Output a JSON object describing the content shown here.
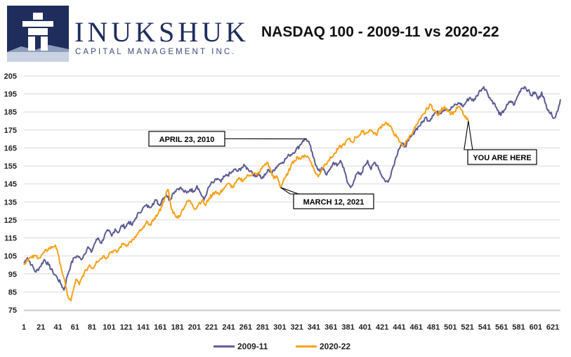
{
  "logo": {
    "name": "INUKSHUK",
    "subtitle": "CAPITAL MANAGEMENT INC."
  },
  "chart_data": {
    "type": "line",
    "title": "NASDAQ 100 - 2009-11 vs 2020-22",
    "xlabel": "",
    "ylabel": "",
    "xlim": [
      1,
      630
    ],
    "ylim": [
      75,
      205
    ],
    "x_ticks": [
      1,
      21,
      41,
      61,
      81,
      101,
      121,
      141,
      161,
      181,
      201,
      221,
      241,
      261,
      281,
      301,
      321,
      341,
      361,
      381,
      401,
      421,
      441,
      461,
      481,
      501,
      521,
      541,
      561,
      581,
      601,
      621
    ],
    "y_ticks": [
      75,
      85,
      95,
      105,
      115,
      125,
      135,
      145,
      155,
      165,
      175,
      185,
      195,
      205
    ],
    "grid": true,
    "legend_position": "bottom-center",
    "series": [
      {
        "name": "2009-11",
        "color": "#5b5b94",
        "points": [
          [
            1,
            101
          ],
          [
            5,
            104
          ],
          [
            10,
            100
          ],
          [
            15,
            96
          ],
          [
            20,
            99
          ],
          [
            25,
            103
          ],
          [
            30,
            100
          ],
          [
            35,
            96
          ],
          [
            40,
            93
          ],
          [
            45,
            89
          ],
          [
            48,
            86
          ],
          [
            52,
            94
          ],
          [
            56,
            100
          ],
          [
            60,
            104
          ],
          [
            64,
            105
          ],
          [
            68,
            103
          ],
          [
            72,
            106
          ],
          [
            76,
            110
          ],
          [
            80,
            107
          ],
          [
            84,
            112
          ],
          [
            88,
            115
          ],
          [
            92,
            112
          ],
          [
            96,
            117
          ],
          [
            100,
            119
          ],
          [
            104,
            116
          ],
          [
            108,
            120
          ],
          [
            112,
            118
          ],
          [
            116,
            122
          ],
          [
            120,
            121
          ],
          [
            124,
            124
          ],
          [
            128,
            122
          ],
          [
            132,
            126
          ],
          [
            136,
            129
          ],
          [
            140,
            131
          ],
          [
            144,
            133
          ],
          [
            148,
            132
          ],
          [
            152,
            134
          ],
          [
            156,
            136
          ],
          [
            160,
            133
          ],
          [
            164,
            137
          ],
          [
            168,
            139
          ],
          [
            172,
            136
          ],
          [
            176,
            140
          ],
          [
            180,
            142
          ],
          [
            184,
            143
          ],
          [
            188,
            141
          ],
          [
            192,
            140
          ],
          [
            196,
            142
          ],
          [
            200,
            141
          ],
          [
            204,
            144
          ],
          [
            208,
            140
          ],
          [
            212,
            136
          ],
          [
            216,
            141
          ],
          [
            220,
            145
          ],
          [
            224,
            146
          ],
          [
            228,
            148
          ],
          [
            232,
            146
          ],
          [
            236,
            149
          ],
          [
            240,
            150
          ],
          [
            244,
            151
          ],
          [
            248,
            153
          ],
          [
            252,
            152
          ],
          [
            256,
            154
          ],
          [
            260,
            155
          ],
          [
            264,
            153
          ],
          [
            268,
            152
          ],
          [
            272,
            149
          ],
          [
            276,
            151
          ],
          [
            280,
            148
          ],
          [
            284,
            150
          ],
          [
            288,
            153
          ],
          [
            292,
            151
          ],
          [
            296,
            154
          ],
          [
            300,
            156
          ],
          [
            304,
            157
          ],
          [
            308,
            159
          ],
          [
            312,
            161
          ],
          [
            316,
            162
          ],
          [
            320,
            164
          ],
          [
            324,
            166
          ],
          [
            328,
            169
          ],
          [
            332,
            170
          ],
          [
            336,
            167
          ],
          [
            340,
            160
          ],
          [
            344,
            155
          ],
          [
            348,
            152
          ],
          [
            352,
            154
          ],
          [
            356,
            150
          ],
          [
            360,
            153
          ],
          [
            364,
            157
          ],
          [
            368,
            155
          ],
          [
            372,
            158
          ],
          [
            376,
            154
          ],
          [
            380,
            146
          ],
          [
            384,
            143
          ],
          [
            388,
            147
          ],
          [
            392,
            151
          ],
          [
            396,
            150
          ],
          [
            400,
            155
          ],
          [
            404,
            158
          ],
          [
            408,
            153
          ],
          [
            412,
            157
          ],
          [
            416,
            155
          ],
          [
            420,
            150
          ],
          [
            424,
            147
          ],
          [
            428,
            146
          ],
          [
            432,
            152
          ],
          [
            436,
            158
          ],
          [
            440,
            164
          ],
          [
            444,
            167
          ],
          [
            448,
            166
          ],
          [
            452,
            169
          ],
          [
            456,
            172
          ],
          [
            460,
            175
          ],
          [
            464,
            177
          ],
          [
            468,
            179
          ],
          [
            472,
            182
          ],
          [
            476,
            180
          ],
          [
            480,
            183
          ],
          [
            484,
            185
          ],
          [
            488,
            184
          ],
          [
            492,
            186
          ],
          [
            496,
            187
          ],
          [
            500,
            186
          ],
          [
            504,
            188
          ],
          [
            508,
            189
          ],
          [
            512,
            190
          ],
          [
            516,
            188
          ],
          [
            520,
            191
          ],
          [
            524,
            193
          ],
          [
            528,
            191
          ],
          [
            532,
            194
          ],
          [
            536,
            197
          ],
          [
            540,
            199
          ],
          [
            544,
            196
          ],
          [
            548,
            192
          ],
          [
            552,
            190
          ],
          [
            556,
            186
          ],
          [
            560,
            183
          ],
          [
            564,
            186
          ],
          [
            568,
            189
          ],
          [
            572,
            191
          ],
          [
            576,
            189
          ],
          [
            580,
            194
          ],
          [
            584,
            198
          ],
          [
            588,
            199
          ],
          [
            592,
            197
          ],
          [
            596,
            194
          ],
          [
            600,
            196
          ],
          [
            604,
            192
          ],
          [
            608,
            196
          ],
          [
            612,
            190
          ],
          [
            616,
            186
          ],
          [
            620,
            183
          ],
          [
            624,
            182
          ],
          [
            628,
            188
          ],
          [
            630,
            192
          ]
        ]
      },
      {
        "name": "2020-22",
        "color": "#f7a11a",
        "points": [
          [
            1,
            100
          ],
          [
            5,
            103
          ],
          [
            10,
            104
          ],
          [
            15,
            105
          ],
          [
            20,
            104
          ],
          [
            25,
            107
          ],
          [
            30,
            109
          ],
          [
            35,
            110
          ],
          [
            38,
            111
          ],
          [
            41,
            106
          ],
          [
            44,
            100
          ],
          [
            47,
            94
          ],
          [
            50,
            88
          ],
          [
            53,
            82
          ],
          [
            56,
            80
          ],
          [
            59,
            86
          ],
          [
            62,
            92
          ],
          [
            66,
            89
          ],
          [
            70,
            94
          ],
          [
            74,
            97
          ],
          [
            78,
            100
          ],
          [
            82,
            98
          ],
          [
            86,
            102
          ],
          [
            90,
            103
          ],
          [
            94,
            105
          ],
          [
            98,
            104
          ],
          [
            102,
            107
          ],
          [
            106,
            108
          ],
          [
            110,
            107
          ],
          [
            114,
            110
          ],
          [
            118,
            112
          ],
          [
            122,
            111
          ],
          [
            126,
            113
          ],
          [
            130,
            114
          ],
          [
            134,
            117
          ],
          [
            138,
            119
          ],
          [
            142,
            121
          ],
          [
            146,
            124
          ],
          [
            150,
            122
          ],
          [
            154,
            126
          ],
          [
            158,
            128
          ],
          [
            162,
            132
          ],
          [
            166,
            137
          ],
          [
            170,
            142
          ],
          [
            174,
            131
          ],
          [
            178,
            128
          ],
          [
            182,
            126
          ],
          [
            186,
            130
          ],
          [
            190,
            133
          ],
          [
            194,
            136
          ],
          [
            198,
            134
          ],
          [
            202,
            131
          ],
          [
            206,
            134
          ],
          [
            210,
            136
          ],
          [
            214,
            133
          ],
          [
            218,
            137
          ],
          [
            222,
            139
          ],
          [
            226,
            141
          ],
          [
            230,
            139
          ],
          [
            234,
            142
          ],
          [
            238,
            144
          ],
          [
            242,
            145
          ],
          [
            246,
            143
          ],
          [
            250,
            146
          ],
          [
            254,
            148
          ],
          [
            258,
            147
          ],
          [
            262,
            149
          ],
          [
            266,
            150
          ],
          [
            270,
            151
          ],
          [
            274,
            150
          ],
          [
            278,
            152
          ],
          [
            282,
            155
          ],
          [
            286,
            157
          ],
          [
            290,
            153
          ],
          [
            294,
            148
          ],
          [
            298,
            149
          ],
          [
            302,
            143
          ],
          [
            306,
            148
          ],
          [
            310,
            150
          ],
          [
            314,
            155
          ],
          [
            318,
            158
          ],
          [
            322,
            160
          ],
          [
            326,
            159
          ],
          [
            330,
            161
          ],
          [
            334,
            160
          ],
          [
            338,
            157
          ],
          [
            342,
            152
          ],
          [
            346,
            149
          ],
          [
            350,
            153
          ],
          [
            354,
            156
          ],
          [
            358,
            158
          ],
          [
            362,
            160
          ],
          [
            366,
            162
          ],
          [
            370,
            165
          ],
          [
            374,
            166
          ],
          [
            378,
            168
          ],
          [
            382,
            170
          ],
          [
            386,
            168
          ],
          [
            390,
            171
          ],
          [
            394,
            172
          ],
          [
            398,
            174
          ],
          [
            402,
            173
          ],
          [
            406,
            175
          ],
          [
            410,
            174
          ],
          [
            414,
            172
          ],
          [
            418,
            176
          ],
          [
            422,
            178
          ],
          [
            426,
            179
          ],
          [
            430,
            177
          ],
          [
            434,
            174
          ],
          [
            438,
            171
          ],
          [
            442,
            168
          ],
          [
            446,
            166
          ],
          [
            450,
            169
          ],
          [
            454,
            172
          ],
          [
            458,
            175
          ],
          [
            462,
            178
          ],
          [
            466,
            181
          ],
          [
            470,
            184
          ],
          [
            474,
            187
          ],
          [
            478,
            189
          ],
          [
            482,
            186
          ],
          [
            486,
            183
          ],
          [
            490,
            186
          ],
          [
            494,
            188
          ],
          [
            498,
            186
          ],
          [
            502,
            184
          ],
          [
            506,
            185
          ],
          [
            510,
            188
          ],
          [
            514,
            186
          ],
          [
            518,
            182
          ],
          [
            522,
            180
          ]
        ]
      }
    ],
    "annotations": [
      {
        "text": "APRIL 23, 2010",
        "x": 332,
        "y": 170
      },
      {
        "text": "MARCH 12, 2021",
        "x": 302,
        "y": 143
      },
      {
        "text": "YOU ARE HERE",
        "x": 522,
        "y": 180
      }
    ]
  }
}
